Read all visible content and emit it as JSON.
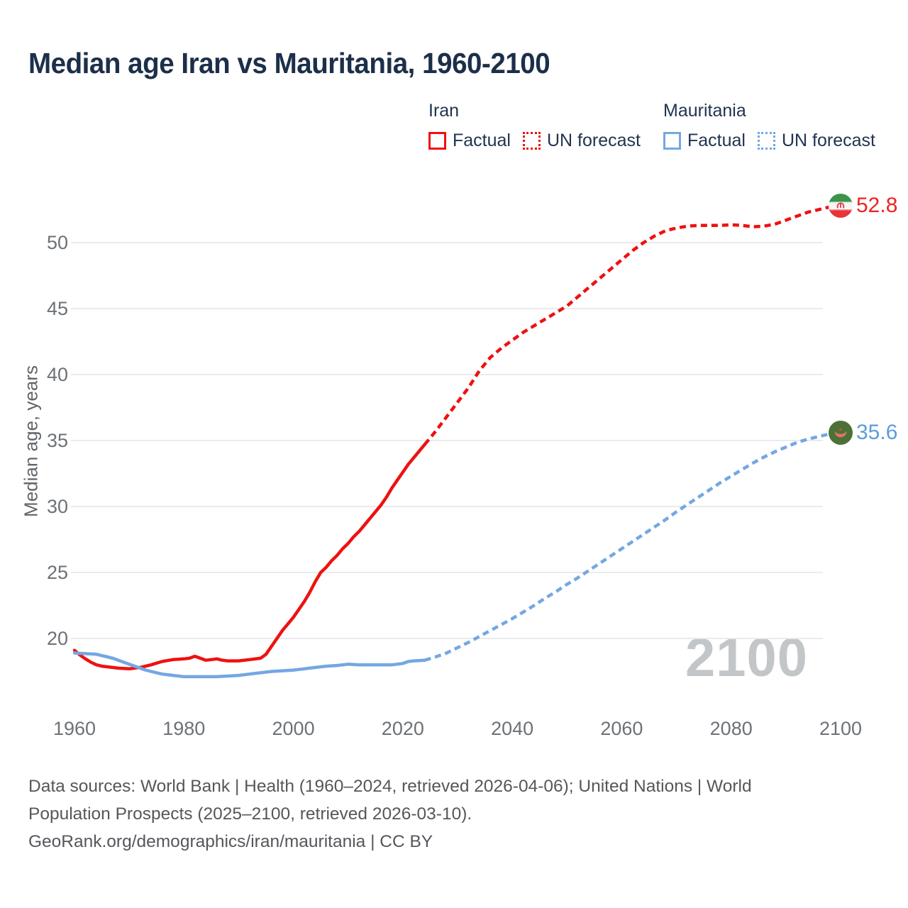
{
  "title": "Median age Iran vs Mauritania, 1960-2100",
  "watermark": "2100",
  "legend": {
    "groups": [
      {
        "name": "Iran",
        "items": [
          {
            "label": "Factual",
            "style": "solid",
            "color": "#ee1111"
          },
          {
            "label": "UN forecast",
            "style": "dotted",
            "color": "#ee1111"
          }
        ]
      },
      {
        "name": "Mauritania",
        "items": [
          {
            "label": "Factual",
            "style": "solid",
            "color": "#74a7e3"
          },
          {
            "label": "UN forecast",
            "style": "dotted",
            "color": "#74a7e3"
          }
        ]
      }
    ]
  },
  "footer": {
    "line1": "Data sources: World Bank | Health (1960–2024, retrieved 2026-04-06); United Nations | World",
    "line2": "Population Prospects (2025–2100, retrieved 2026-03-10).",
    "line3": "GeoRank.org/demographics/iran/mauritania | CC BY"
  },
  "chart_data": {
    "type": "line",
    "title": "Median age Iran vs Mauritania, 1960-2100",
    "xlabel": "",
    "ylabel": "Median age, years",
    "x_ticks": [
      1960,
      1980,
      2000,
      2020,
      2040,
      2060,
      2080,
      2100
    ],
    "y_ticks": [
      20,
      25,
      30,
      35,
      40,
      45,
      50
    ],
    "xlim": [
      1959,
      2104
    ],
    "ylim": [
      16.5,
      54
    ],
    "grid": "horizontal",
    "legend_position": "top-right",
    "series": [
      {
        "name": "Iran — Factual",
        "color": "#ee1111",
        "dash": "solid",
        "points": [
          [
            1960,
            19.1
          ],
          [
            1961,
            18.75
          ],
          [
            1962,
            18.45
          ],
          [
            1963,
            18.2
          ],
          [
            1964,
            18.0
          ],
          [
            1965,
            17.9
          ],
          [
            1966,
            17.85
          ],
          [
            1967,
            17.8
          ],
          [
            1968,
            17.75
          ],
          [
            1970,
            17.7
          ],
          [
            1972,
            17.8
          ],
          [
            1974,
            18.0
          ],
          [
            1976,
            18.25
          ],
          [
            1978,
            18.4
          ],
          [
            1980,
            18.45
          ],
          [
            1981,
            18.5
          ],
          [
            1982,
            18.65
          ],
          [
            1983,
            18.5
          ],
          [
            1984,
            18.35
          ],
          [
            1985,
            18.4
          ],
          [
            1986,
            18.45
          ],
          [
            1987,
            18.35
          ],
          [
            1988,
            18.3
          ],
          [
            1990,
            18.3
          ],
          [
            1992,
            18.4
          ],
          [
            1994,
            18.5
          ],
          [
            1995,
            18.8
          ],
          [
            1996,
            19.4
          ],
          [
            1997,
            20.0
          ],
          [
            1998,
            20.6
          ],
          [
            1999,
            21.1
          ],
          [
            2000,
            21.6
          ],
          [
            2001,
            22.2
          ],
          [
            2002,
            22.8
          ],
          [
            2003,
            23.5
          ],
          [
            2004,
            24.3
          ],
          [
            2005,
            25.0
          ],
          [
            2006,
            25.4
          ],
          [
            2007,
            25.9
          ],
          [
            2008,
            26.3
          ],
          [
            2009,
            26.8
          ],
          [
            2010,
            27.2
          ],
          [
            2011,
            27.7
          ],
          [
            2012,
            28.1
          ],
          [
            2013,
            28.6
          ],
          [
            2014,
            29.1
          ],
          [
            2015,
            29.6
          ],
          [
            2016,
            30.1
          ],
          [
            2017,
            30.7
          ],
          [
            2018,
            31.4
          ],
          [
            2019,
            32.0
          ],
          [
            2020,
            32.6
          ],
          [
            2021,
            33.2
          ],
          [
            2022,
            33.7
          ],
          [
            2023,
            34.2
          ],
          [
            2024,
            34.7
          ]
        ]
      },
      {
        "name": "Iran — UN forecast",
        "color": "#ee1111",
        "dash": "dashed",
        "points": [
          [
            2024,
            34.7
          ],
          [
            2026,
            35.7
          ],
          [
            2028,
            36.8
          ],
          [
            2030,
            37.9
          ],
          [
            2032,
            39.0
          ],
          [
            2034,
            40.3
          ],
          [
            2036,
            41.3
          ],
          [
            2038,
            42.0
          ],
          [
            2040,
            42.6
          ],
          [
            2042,
            43.2
          ],
          [
            2044,
            43.7
          ],
          [
            2046,
            44.2
          ],
          [
            2048,
            44.7
          ],
          [
            2050,
            45.2
          ],
          [
            2052,
            45.9
          ],
          [
            2054,
            46.6
          ],
          [
            2056,
            47.3
          ],
          [
            2058,
            48.0
          ],
          [
            2060,
            48.7
          ],
          [
            2062,
            49.4
          ],
          [
            2064,
            50.0
          ],
          [
            2066,
            50.5
          ],
          [
            2068,
            50.9
          ],
          [
            2070,
            51.1
          ],
          [
            2072,
            51.25
          ],
          [
            2074,
            51.3
          ],
          [
            2076,
            51.3
          ],
          [
            2078,
            51.3
          ],
          [
            2080,
            51.35
          ],
          [
            2082,
            51.3
          ],
          [
            2084,
            51.2
          ],
          [
            2086,
            51.25
          ],
          [
            2088,
            51.4
          ],
          [
            2090,
            51.7
          ],
          [
            2092,
            52.0
          ],
          [
            2094,
            52.3
          ],
          [
            2096,
            52.5
          ],
          [
            2098,
            52.7
          ],
          [
            2100,
            52.8
          ]
        ]
      },
      {
        "name": "Mauritania — Factual",
        "color": "#74a7e3",
        "dash": "solid",
        "points": [
          [
            1960,
            18.9
          ],
          [
            1962,
            18.85
          ],
          [
            1964,
            18.8
          ],
          [
            1965,
            18.7
          ],
          [
            1966,
            18.6
          ],
          [
            1967,
            18.5
          ],
          [
            1968,
            18.35
          ],
          [
            1969,
            18.2
          ],
          [
            1970,
            18.05
          ],
          [
            1971,
            17.9
          ],
          [
            1972,
            17.75
          ],
          [
            1973,
            17.6
          ],
          [
            1974,
            17.5
          ],
          [
            1975,
            17.4
          ],
          [
            1976,
            17.3
          ],
          [
            1977,
            17.25
          ],
          [
            1978,
            17.2
          ],
          [
            1979,
            17.15
          ],
          [
            1980,
            17.1
          ],
          [
            1982,
            17.1
          ],
          [
            1984,
            17.1
          ],
          [
            1986,
            17.1
          ],
          [
            1988,
            17.15
          ],
          [
            1990,
            17.2
          ],
          [
            1992,
            17.3
          ],
          [
            1994,
            17.4
          ],
          [
            1996,
            17.5
          ],
          [
            1998,
            17.55
          ],
          [
            2000,
            17.6
          ],
          [
            2002,
            17.7
          ],
          [
            2004,
            17.8
          ],
          [
            2006,
            17.9
          ],
          [
            2008,
            17.95
          ],
          [
            2010,
            18.05
          ],
          [
            2012,
            18.0
          ],
          [
            2014,
            18.0
          ],
          [
            2016,
            18.0
          ],
          [
            2018,
            18.0
          ],
          [
            2020,
            18.1
          ],
          [
            2021,
            18.25
          ],
          [
            2022,
            18.3
          ],
          [
            2024,
            18.35
          ]
        ]
      },
      {
        "name": "Mauritania — UN forecast",
        "color": "#74a7e3",
        "dash": "dashed",
        "points": [
          [
            2024,
            18.35
          ],
          [
            2026,
            18.6
          ],
          [
            2028,
            18.9
          ],
          [
            2030,
            19.3
          ],
          [
            2032,
            19.7
          ],
          [
            2034,
            20.15
          ],
          [
            2036,
            20.6
          ],
          [
            2038,
            21.05
          ],
          [
            2040,
            21.5
          ],
          [
            2042,
            22.0
          ],
          [
            2044,
            22.5
          ],
          [
            2046,
            23.05
          ],
          [
            2048,
            23.55
          ],
          [
            2050,
            24.1
          ],
          [
            2052,
            24.6
          ],
          [
            2054,
            25.15
          ],
          [
            2056,
            25.7
          ],
          [
            2058,
            26.25
          ],
          [
            2060,
            26.8
          ],
          [
            2062,
            27.35
          ],
          [
            2064,
            27.9
          ],
          [
            2066,
            28.45
          ],
          [
            2068,
            29.0
          ],
          [
            2070,
            29.6
          ],
          [
            2072,
            30.15
          ],
          [
            2074,
            30.7
          ],
          [
            2076,
            31.25
          ],
          [
            2078,
            31.8
          ],
          [
            2080,
            32.3
          ],
          [
            2082,
            32.8
          ],
          [
            2084,
            33.3
          ],
          [
            2086,
            33.75
          ],
          [
            2088,
            34.15
          ],
          [
            2090,
            34.5
          ],
          [
            2092,
            34.85
          ],
          [
            2094,
            35.1
          ],
          [
            2096,
            35.3
          ],
          [
            2098,
            35.5
          ],
          [
            2100,
            35.6
          ]
        ]
      }
    ],
    "end_markers": [
      {
        "series": "Iran",
        "year": 2100,
        "value": 52.8,
        "label": "52.8",
        "color": "#ee2222",
        "flag": "iran"
      },
      {
        "series": "Mauritania",
        "year": 2100,
        "value": 35.6,
        "label": "35.6",
        "color": "#5b9ddb",
        "flag": "mauritania"
      }
    ]
  }
}
